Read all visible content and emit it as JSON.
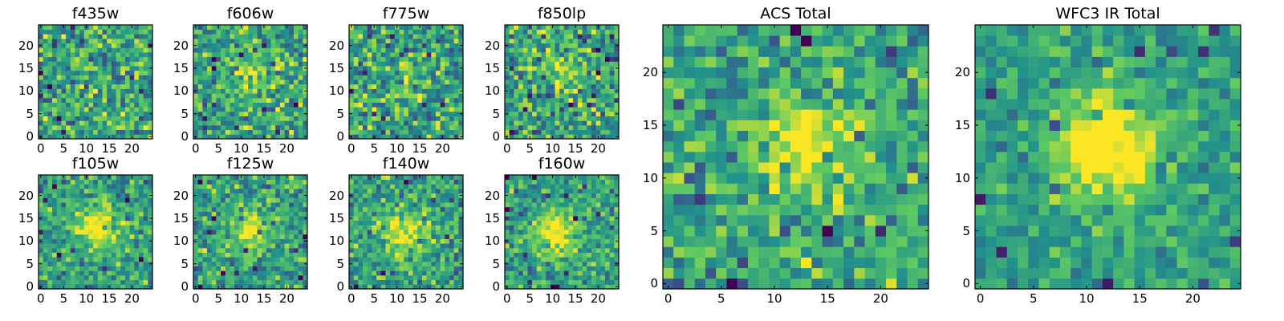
{
  "colormap": {
    "name": "viridis",
    "stops": [
      "#440154",
      "#3b528b",
      "#21918c",
      "#5ec962",
      "#fde725"
    ]
  },
  "frame_color": "#000000",
  "chart_data": [
    {
      "type": "heatmap",
      "title": "f435w",
      "nx": 25,
      "ny": 25,
      "xlim": [
        0,
        24
      ],
      "ylim": [
        0,
        24
      ],
      "xticks": [
        "0",
        "5",
        "10",
        "15",
        "20"
      ],
      "yticks": [
        "0",
        "5",
        "10",
        "15",
        "20"
      ],
      "peak": [
        12,
        12
      ],
      "peak_strength": 0.05,
      "noise": 0.55,
      "seed": 11
    },
    {
      "type": "heatmap",
      "title": "f606w",
      "nx": 25,
      "ny": 25,
      "xlim": [
        0,
        24
      ],
      "ylim": [
        0,
        24
      ],
      "xticks": [
        "0",
        "5",
        "10",
        "15",
        "20"
      ],
      "yticks": [
        "0",
        "5",
        "10",
        "15",
        "20"
      ],
      "peak": [
        13,
        13
      ],
      "peak_strength": 0.3,
      "noise": 0.5,
      "seed": 23
    },
    {
      "type": "heatmap",
      "title": "f775w",
      "nx": 25,
      "ny": 25,
      "xlim": [
        0,
        24
      ],
      "ylim": [
        0,
        24
      ],
      "xticks": [
        "0",
        "5",
        "10",
        "15",
        "20"
      ],
      "yticks": [
        "0",
        "5",
        "10",
        "15",
        "20"
      ],
      "peak": [
        13,
        12
      ],
      "peak_strength": 0.15,
      "noise": 0.55,
      "seed": 37
    },
    {
      "type": "heatmap",
      "title": "f850lp",
      "nx": 25,
      "ny": 25,
      "xlim": [
        0,
        24
      ],
      "ylim": [
        0,
        24
      ],
      "xticks": [
        "0",
        "5",
        "10",
        "15",
        "20"
      ],
      "yticks": [
        "0",
        "5",
        "10",
        "15",
        "20"
      ],
      "peak": [
        13,
        14
      ],
      "peak_strength": 0.2,
      "noise": 0.55,
      "seed": 41
    },
    {
      "type": "heatmap",
      "title": "f105w",
      "nx": 25,
      "ny": 25,
      "xlim": [
        0,
        24
      ],
      "ylim": [
        0,
        24
      ],
      "xticks": [
        "0",
        "5",
        "10",
        "15",
        "20"
      ],
      "yticks": [
        "0",
        "5",
        "10",
        "15",
        "20"
      ],
      "peak": [
        12,
        13
      ],
      "peak_strength": 0.45,
      "noise": 0.42,
      "seed": 53
    },
    {
      "type": "heatmap",
      "title": "f125w",
      "nx": 25,
      "ny": 25,
      "xlim": [
        0,
        24
      ],
      "ylim": [
        0,
        24
      ],
      "xticks": [
        "0",
        "5",
        "10",
        "15",
        "20"
      ],
      "yticks": [
        "0",
        "5",
        "10",
        "15",
        "20"
      ],
      "peak": [
        12,
        12
      ],
      "peak_strength": 0.4,
      "noise": 0.45,
      "seed": 67
    },
    {
      "type": "heatmap",
      "title": "f140w",
      "nx": 25,
      "ny": 25,
      "xlim": [
        0,
        24
      ],
      "ylim": [
        0,
        24
      ],
      "xticks": [
        "0",
        "5",
        "10",
        "15",
        "20"
      ],
      "yticks": [
        "0",
        "5",
        "10",
        "15",
        "20"
      ],
      "peak": [
        12,
        12
      ],
      "peak_strength": 0.4,
      "noise": 0.45,
      "seed": 79
    },
    {
      "type": "heatmap",
      "title": "f160w",
      "nx": 25,
      "ny": 25,
      "xlim": [
        0,
        24
      ],
      "ylim": [
        0,
        24
      ],
      "xticks": [
        "0",
        "5",
        "10",
        "15",
        "20"
      ],
      "yticks": [
        "0",
        "5",
        "10",
        "15",
        "20"
      ],
      "peak": [
        11,
        12
      ],
      "peak_strength": 0.5,
      "noise": 0.4,
      "seed": 83
    },
    {
      "type": "heatmap",
      "title": "ACS Total",
      "nx": 25,
      "ny": 25,
      "xlim": [
        0,
        24
      ],
      "ylim": [
        0,
        24
      ],
      "xticks": [
        "0",
        "5",
        "10",
        "15",
        "20"
      ],
      "yticks": [
        "0",
        "5",
        "10",
        "15",
        "20"
      ],
      "peak": [
        13,
        13
      ],
      "peak_strength": 0.4,
      "noise": 0.45,
      "seed": 97
    },
    {
      "type": "heatmap",
      "title": "WFC3 IR Total",
      "nx": 25,
      "ny": 25,
      "xlim": [
        0,
        24
      ],
      "ylim": [
        0,
        24
      ],
      "xticks": [
        "0",
        "5",
        "10",
        "15",
        "20"
      ],
      "yticks": [
        "0",
        "5",
        "10",
        "15",
        "20"
      ],
      "peak": [
        12,
        13
      ],
      "peak_strength": 0.6,
      "noise": 0.3,
      "seed": 101
    }
  ]
}
